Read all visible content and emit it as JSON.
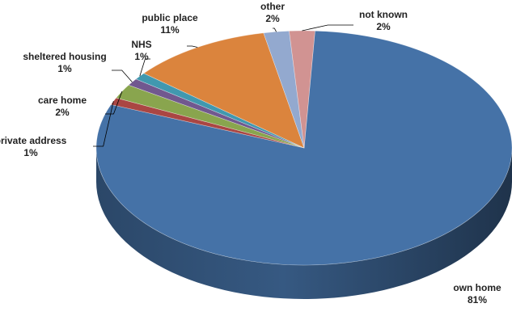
{
  "chart_data": {
    "type": "pie",
    "title": "",
    "slices": [
      {
        "label": "own home",
        "value": 81,
        "pct_label": "81%",
        "color": "#4572A7"
      },
      {
        "label": "private address",
        "value": 1,
        "pct_label": "1%",
        "color": "#AA4643"
      },
      {
        "label": "care home",
        "value": 2,
        "pct_label": "2%",
        "color": "#89A54E"
      },
      {
        "label": "sheltered housing",
        "value": 1,
        "pct_label": "1%",
        "color": "#71588F"
      },
      {
        "label": "NHS",
        "value": 1,
        "pct_label": "1%",
        "color": "#4198AF"
      },
      {
        "label": "public place",
        "value": 11,
        "pct_label": "11%",
        "color": "#DB843D"
      },
      {
        "label": "other",
        "value": 2,
        "pct_label": "2%",
        "color": "#93A9CF"
      },
      {
        "label": "not known",
        "value": 2,
        "pct_label": "2%",
        "color": "#D19392"
      }
    ],
    "three_d": true,
    "legend": "none",
    "data_labels": "category name and percentage with leader lines"
  }
}
